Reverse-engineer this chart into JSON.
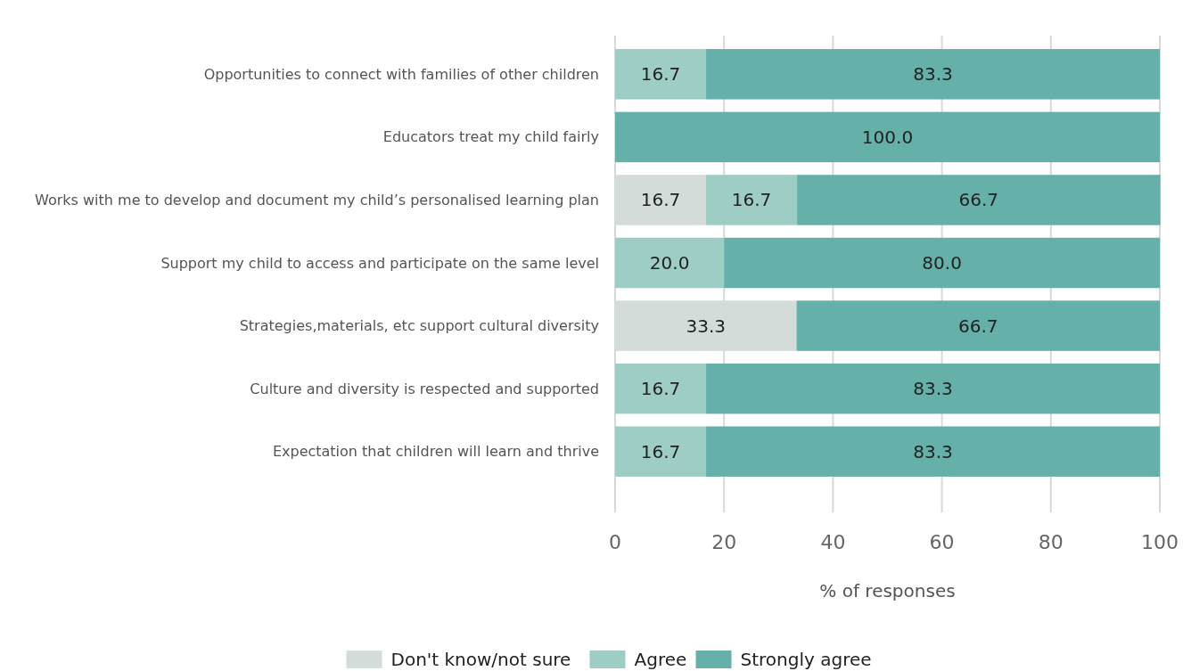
{
  "chart_data": {
    "type": "bar",
    "orientation": "horizontal",
    "stacked": true,
    "xlabel": "% of responses",
    "categories": [
      "Opportunities to connect with families of other children",
      "Educators treat my child fairly",
      "Works with me to develop and document my child’s personalised learning plan",
      "Support my child to access and participate on the same level",
      "Strategies,materials, etc support cultural diversity",
      "Culture and diversity is respected and supported",
      "Expectation that children will learn and thrive"
    ],
    "series": [
      {
        "name": "Don't know/not sure",
        "color": "#d3dcd8",
        "values": [
          null,
          null,
          16.7,
          null,
          33.3,
          null,
          null
        ],
        "value_labels": [
          null,
          null,
          "16.7",
          null,
          "33.3",
          null,
          null
        ]
      },
      {
        "name": "Agree",
        "color": "#9dcdc4",
        "values": [
          16.7,
          null,
          16.7,
          20.0,
          null,
          16.7,
          16.7
        ],
        "value_labels": [
          "16.7",
          null,
          "16.7",
          "20.0",
          null,
          "16.7",
          "16.7"
        ]
      },
      {
        "name": "Strongly agree",
        "color": "#66b0aa",
        "values": [
          83.3,
          100.0,
          66.7,
          80.0,
          66.7,
          83.3,
          83.3
        ],
        "value_labels": [
          "83.3",
          "100.0",
          "66.7",
          "80.0",
          "66.7",
          "83.3",
          "83.3"
        ]
      }
    ],
    "xlim": [
      0,
      100
    ],
    "xticks": [
      0,
      20,
      40,
      60,
      80,
      100
    ],
    "grid": "x",
    "legend": "bottom"
  }
}
